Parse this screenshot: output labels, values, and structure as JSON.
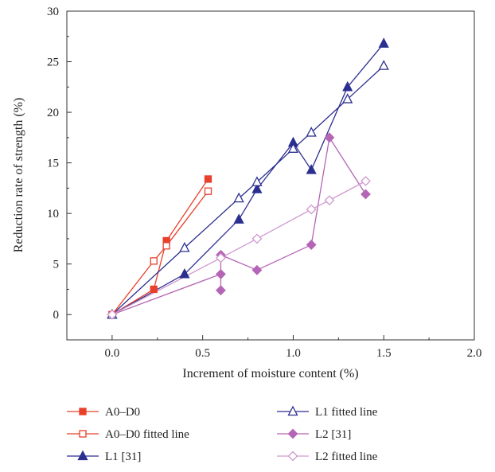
{
  "chart_data": {
    "type": "line",
    "xlabel": "Increment of moisture content (%)",
    "ylabel": "Reduction rate of strength (%)",
    "xlim": [
      -0.25,
      2.0
    ],
    "ylim": [
      -2.5,
      30
    ],
    "x_ticks": [
      "0.0",
      "0.5",
      "1.0",
      "1.5",
      "2.0"
    ],
    "y_ticks": [
      "0",
      "5",
      "10",
      "15",
      "20",
      "25",
      "30"
    ],
    "grid": false,
    "legend_position": "bottom",
    "series": [
      {
        "name": "A0–D0",
        "color": "#e8402a",
        "marker": "square",
        "filled": true,
        "points": [
          [
            0,
            0
          ],
          [
            0.23,
            2.5
          ],
          [
            0.3,
            7.3
          ],
          [
            0.53,
            13.4
          ]
        ]
      },
      {
        "name": "A0–D0 fitted line",
        "color": "#e8402a",
        "marker": "square",
        "filled": false,
        "points": [
          [
            0,
            0
          ],
          [
            0.23,
            5.3
          ],
          [
            0.3,
            6.8
          ],
          [
            0.53,
            12.2
          ]
        ]
      },
      {
        "name": "L1 [31]",
        "color": "#2b2f8f",
        "marker": "triangle",
        "filled": true,
        "points": [
          [
            0,
            0
          ],
          [
            0.4,
            4.0
          ],
          [
            0.7,
            9.4
          ],
          [
            0.8,
            12.4
          ],
          [
            1.0,
            17.0
          ],
          [
            1.1,
            14.3
          ],
          [
            1.3,
            22.5
          ],
          [
            1.5,
            26.8
          ]
        ]
      },
      {
        "name": "L1 fitted line",
        "color": "#2b2f8f",
        "marker": "triangle",
        "filled": false,
        "points": [
          [
            0,
            0
          ],
          [
            0.4,
            6.6
          ],
          [
            0.7,
            11.5
          ],
          [
            0.8,
            13.1
          ],
          [
            1.0,
            16.4
          ],
          [
            1.1,
            18.0
          ],
          [
            1.3,
            21.3
          ],
          [
            1.5,
            24.6
          ]
        ]
      },
      {
        "name": "L2 [31]",
        "color": "#b565b5",
        "marker": "diamond",
        "filled": true,
        "points": [
          [
            0,
            0
          ],
          [
            0.6,
            4.0
          ],
          [
            0.6,
            2.4
          ],
          [
            0.6,
            5.9
          ],
          [
            0.8,
            4.4
          ],
          [
            1.1,
            6.9
          ],
          [
            1.2,
            17.5
          ],
          [
            1.4,
            11.9
          ]
        ]
      },
      {
        "name": "L2 fitted line",
        "color": "#cf99cf",
        "marker": "diamond",
        "filled": false,
        "points": [
          [
            0,
            0
          ],
          [
            0.6,
            5.6
          ],
          [
            0.8,
            7.5
          ],
          [
            1.1,
            10.4
          ],
          [
            1.2,
            11.3
          ],
          [
            1.4,
            13.2
          ]
        ]
      }
    ]
  }
}
